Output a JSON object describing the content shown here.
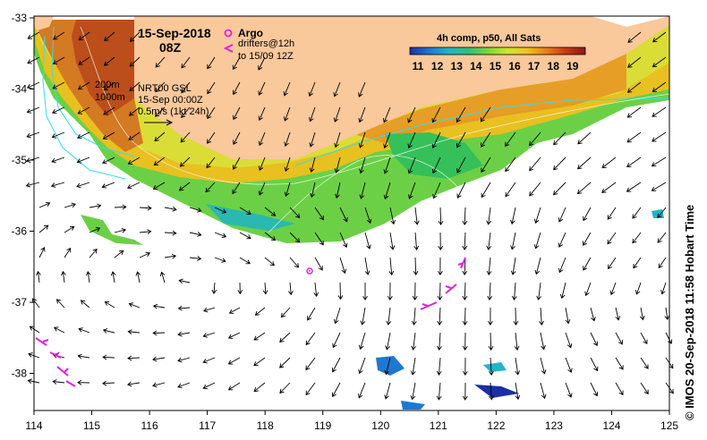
{
  "title": {
    "date": "15-Sep-2018",
    "time": "08Z"
  },
  "legend": {
    "argo_label": "Argo",
    "drifters_label": "drifters@12h",
    "drifters_sub": "to 15/09 12Z",
    "colorbar_title": "4h comp, p50, All Sats",
    "colorbar_ticks": [
      "11",
      "12",
      "13",
      "14",
      "15",
      "16",
      "17",
      "18",
      "19"
    ],
    "colorbar_colors": [
      "#1a2fa8",
      "#1f78d0",
      "#22b4c8",
      "#2fc07a",
      "#7dd63a",
      "#cde82c",
      "#f2c21e",
      "#e8801a",
      "#c83a14",
      "#8b1a10"
    ]
  },
  "annotations": {
    "isobath_200": "200m",
    "isobath_1000": "1000m",
    "model": "NRT00 GSL",
    "model_time": "15-Sep 00:00Z",
    "scale": "0.5m/s (1kt 24h)"
  },
  "axes": {
    "x_ticks": [
      "114",
      "115",
      "116",
      "117",
      "118",
      "119",
      "120",
      "121",
      "122",
      "123",
      "124",
      "125"
    ],
    "y_ticks": [
      "-33",
      "-34",
      "-35",
      "-36",
      "-37",
      "-38"
    ]
  },
  "credit": "© IMOS 20-Sep-2018 11:58 Hobart Time",
  "colors": {
    "land": "#f9c89b",
    "argo": "#e020e0",
    "drifter": "#e020e0",
    "isobath": "#33ddee"
  }
}
